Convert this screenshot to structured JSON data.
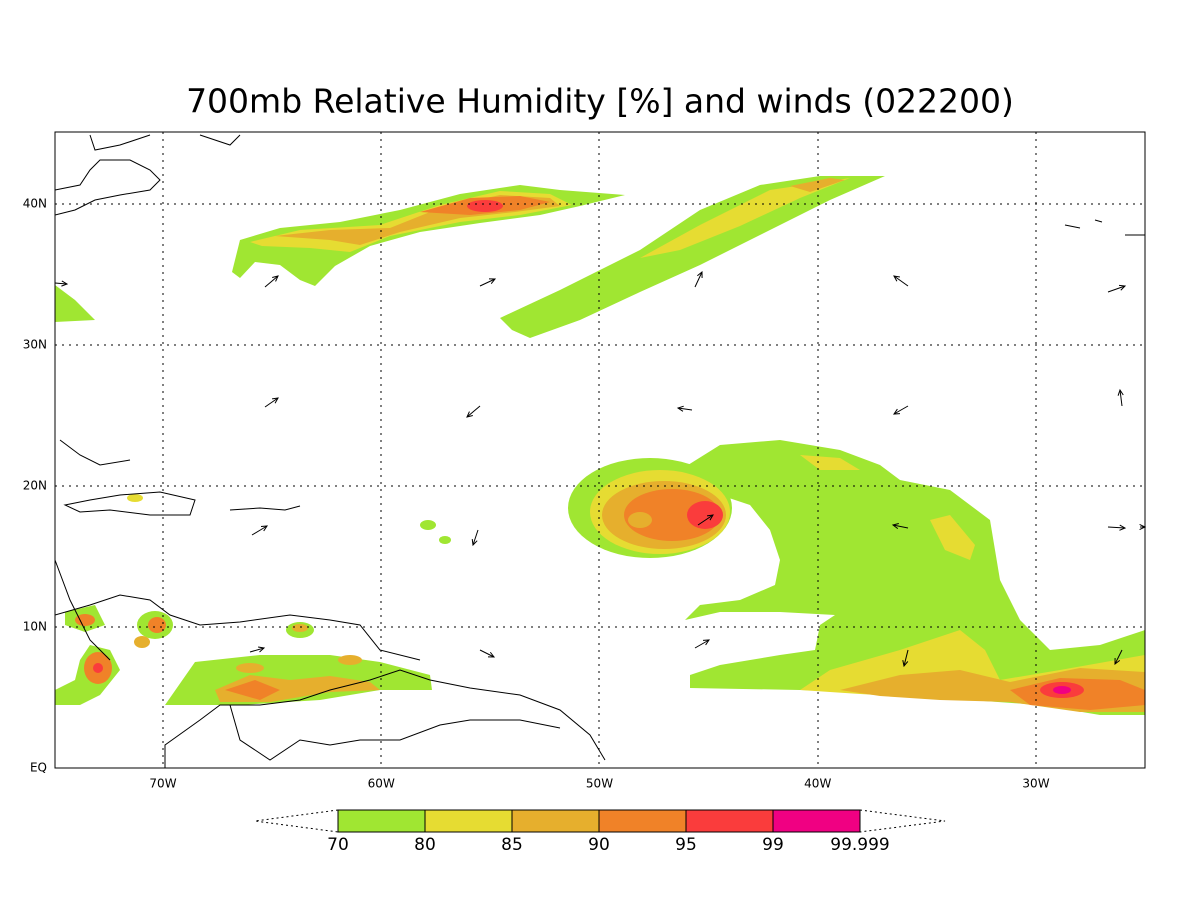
{
  "title": "700mb Relative Humidity [%] and winds (022200)",
  "map": {
    "lon_labels": [
      "70W",
      "60W",
      "50W",
      "40W",
      "30W"
    ],
    "lat_labels": [
      "EQ",
      "10N",
      "20N",
      "30N",
      "40N"
    ]
  },
  "colorbar": {
    "labels": [
      "70",
      "80",
      "85",
      "90",
      "95",
      "99",
      "99.999"
    ],
    "colors": [
      "#a0e632",
      "#e6dc32",
      "#e6af2d",
      "#f08228",
      "#fa3c3c",
      "#f00082"
    ]
  }
}
